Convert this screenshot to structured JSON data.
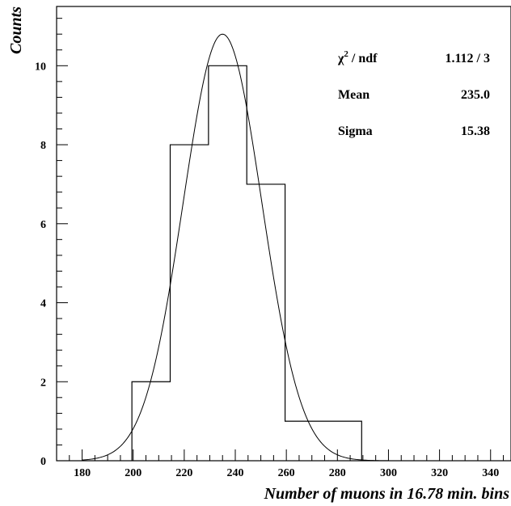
{
  "chart_data": {
    "type": "bar",
    "xlabel": "Number of muons in 16.78 min. bins",
    "ylabel": "Counts",
    "xlim": [
      170,
      348
    ],
    "ylim": [
      0,
      11.5
    ],
    "x_ticks": [
      180,
      200,
      220,
      240,
      260,
      280,
      300,
      320,
      340
    ],
    "y_ticks": [
      0,
      2,
      4,
      6,
      8,
      10
    ],
    "grid": false,
    "histogram": {
      "bin_edges": [
        199.5,
        214.5,
        229.5,
        244.5,
        259.5,
        274.5,
        289.5
      ],
      "counts": [
        2,
        8,
        10,
        7,
        1,
        1
      ]
    },
    "fit": {
      "type": "gaussian",
      "amplitude": 10.8,
      "mean": 235.0,
      "sigma": 15.38
    },
    "stats": [
      {
        "label": "χ",
        "sup": "2",
        "label_rest": " / ndf",
        "value": "1.112 / 3"
      },
      {
        "label": "Mean",
        "sup": "",
        "label_rest": "",
        "value": "235.0"
      },
      {
        "label": "Sigma",
        "sup": "",
        "label_rest": "",
        "value": "15.38"
      }
    ]
  }
}
